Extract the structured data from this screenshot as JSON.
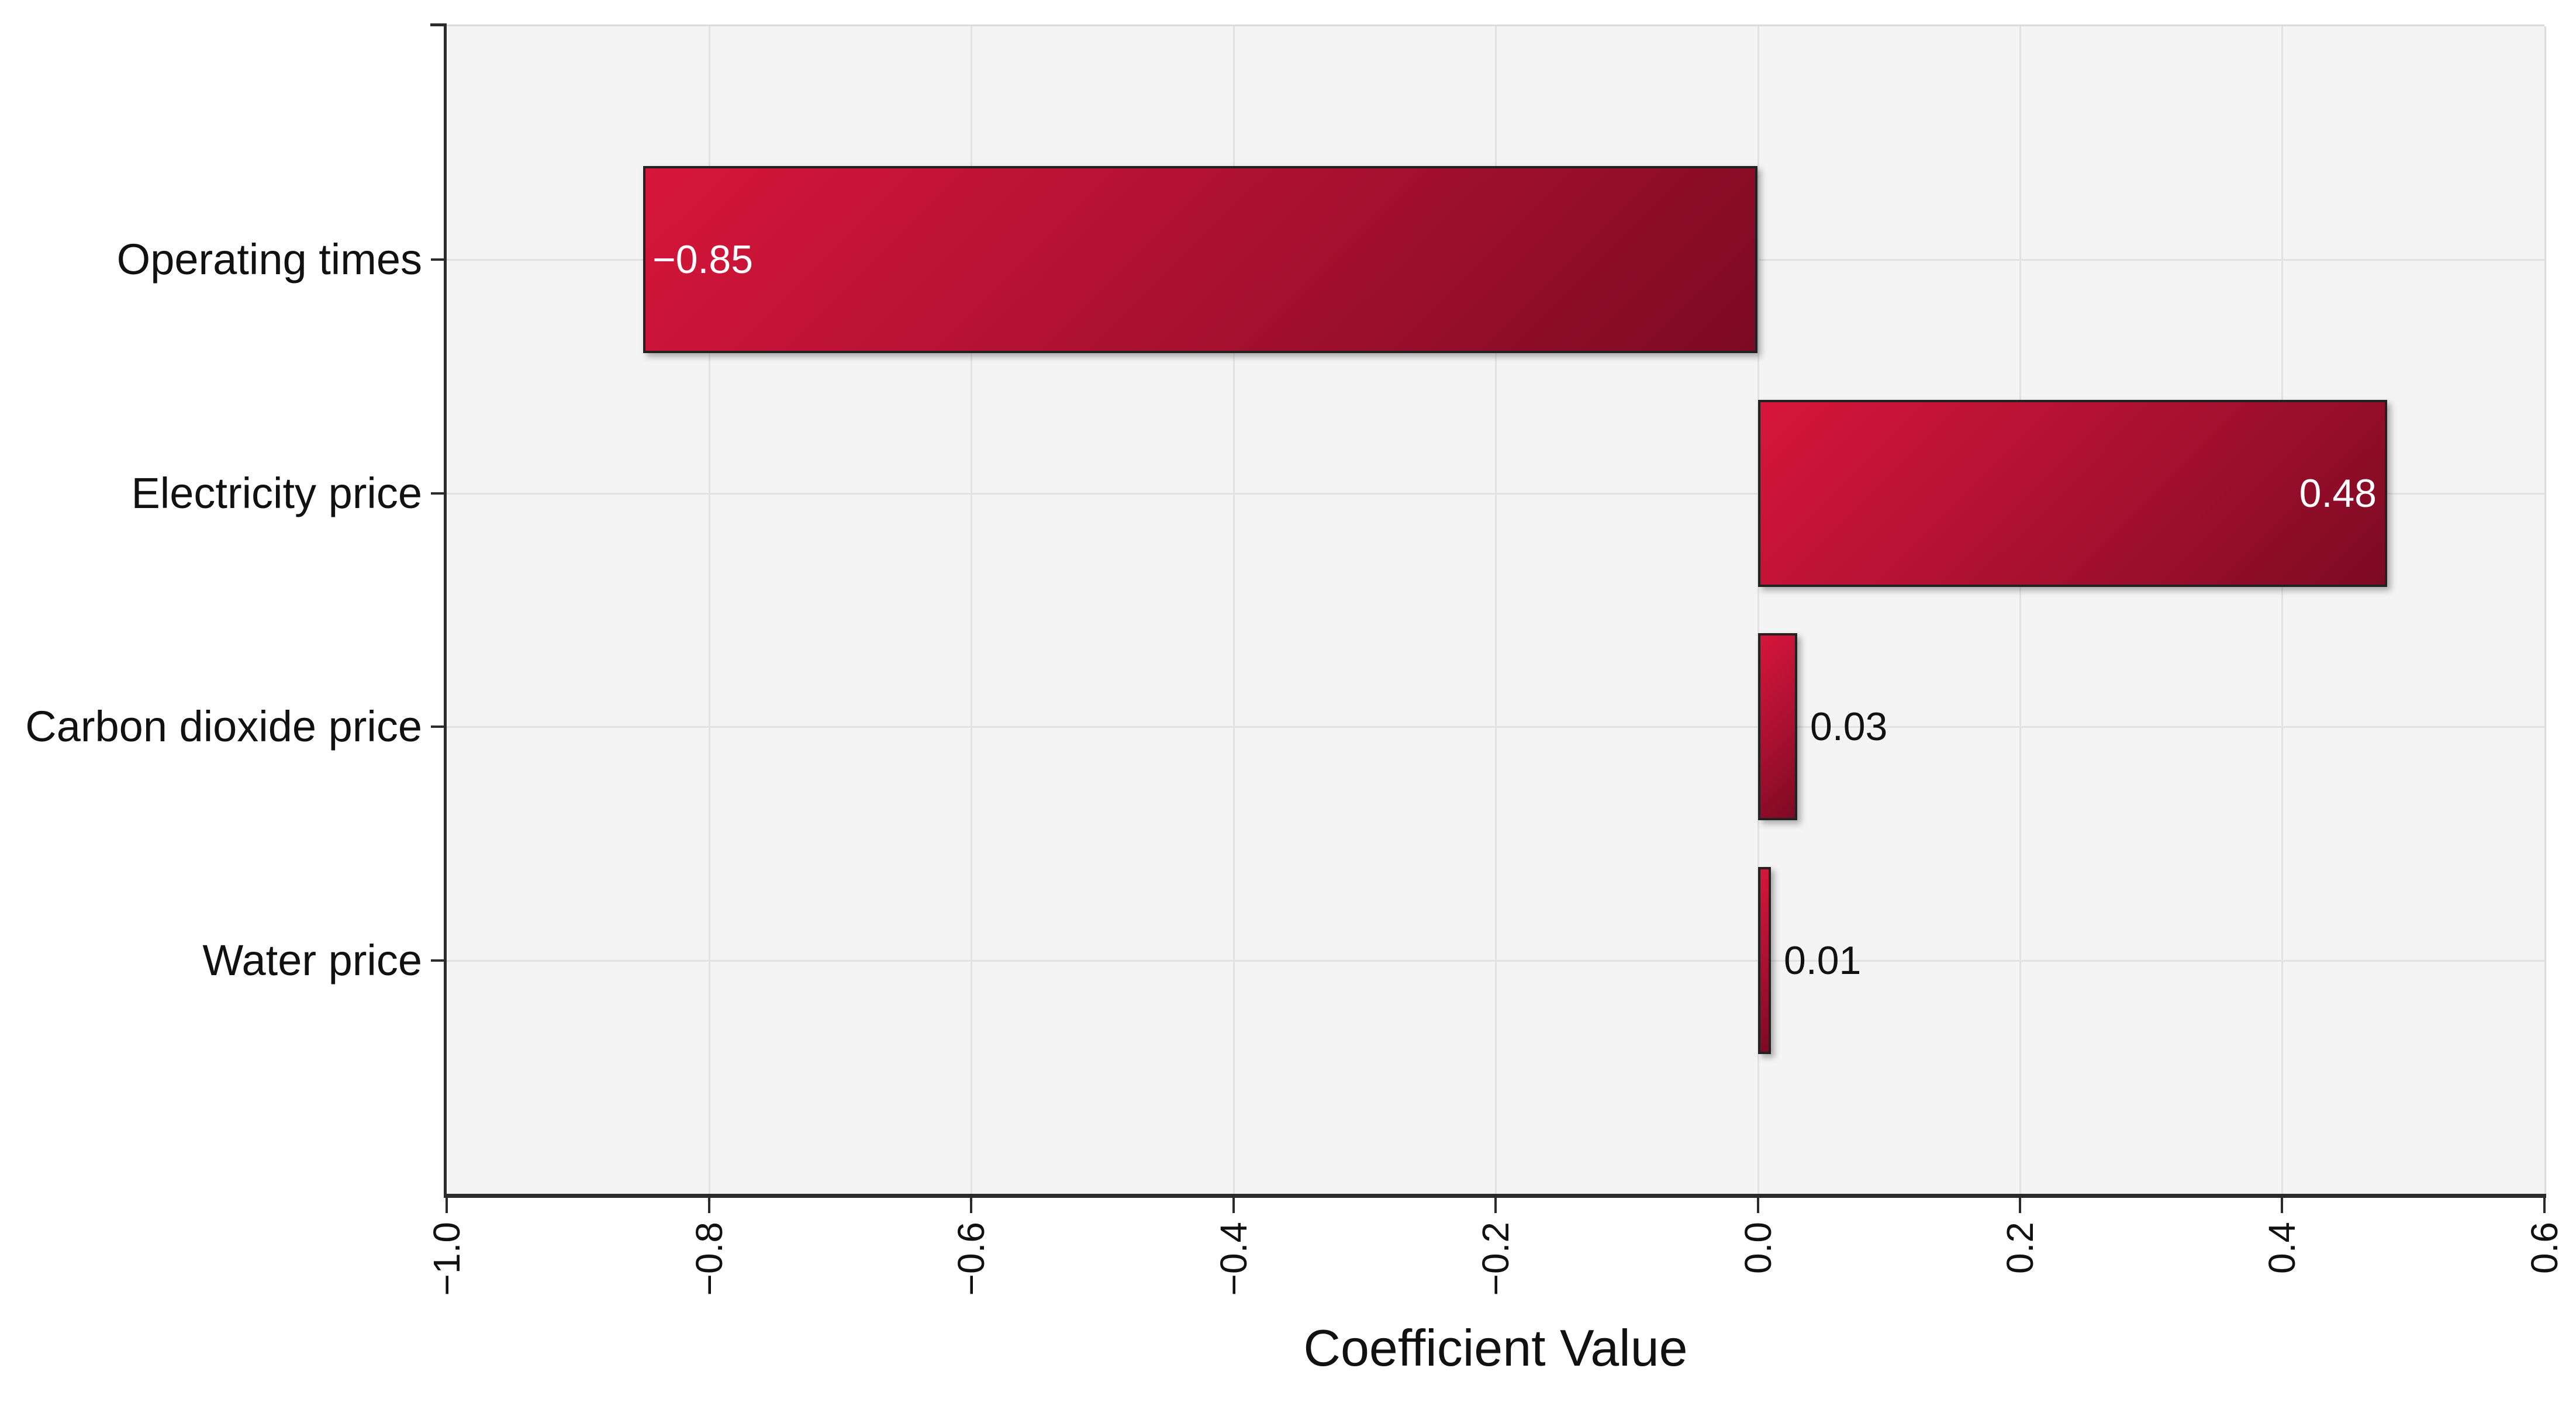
{
  "figure": {
    "background": "#ffffff"
  },
  "chart_data": {
    "type": "bar",
    "orientation": "horizontal",
    "title": "",
    "xlabel": "Coefficient Value",
    "ylabel": "",
    "categories": [
      "Operating times",
      "Electricity price",
      "Carbon dioxide price",
      "Water price"
    ],
    "values": [
      -0.85,
      0.48,
      0.03,
      0.01
    ],
    "value_labels": [
      "−0.85",
      "0.48",
      "0.03",
      "0.01"
    ],
    "value_label_placement": [
      "inside-left",
      "inside-right",
      "outside-right",
      "outside-right"
    ],
    "xlim": [
      -1.0,
      0.6
    ],
    "xticks": [
      -1.0,
      -0.8,
      -0.6,
      -0.4,
      -0.2,
      0.0,
      0.2,
      0.4,
      0.6
    ],
    "xtick_labels": [
      "−1.0",
      "−0.8",
      "−0.6",
      "−0.4",
      "−0.2",
      "0.0",
      "0.2",
      "0.4",
      "0.6"
    ],
    "xtick_rotation_deg": 90,
    "grid": true,
    "legend_position": "none",
    "bar_height_fraction": 0.8,
    "colors": {
      "bar_gradient_start": "#d6163a",
      "bar_gradient_end": "#7c0a23",
      "bar_border": "#222222",
      "plot_background": "#f4f4f4",
      "gridline": "#e2e2e2",
      "spine_dark": "#2b2b2b",
      "spine_light": "#dcdcdc",
      "label_inside": "#ffffff",
      "label_outside": "#111111",
      "text_color": "#111111"
    }
  }
}
